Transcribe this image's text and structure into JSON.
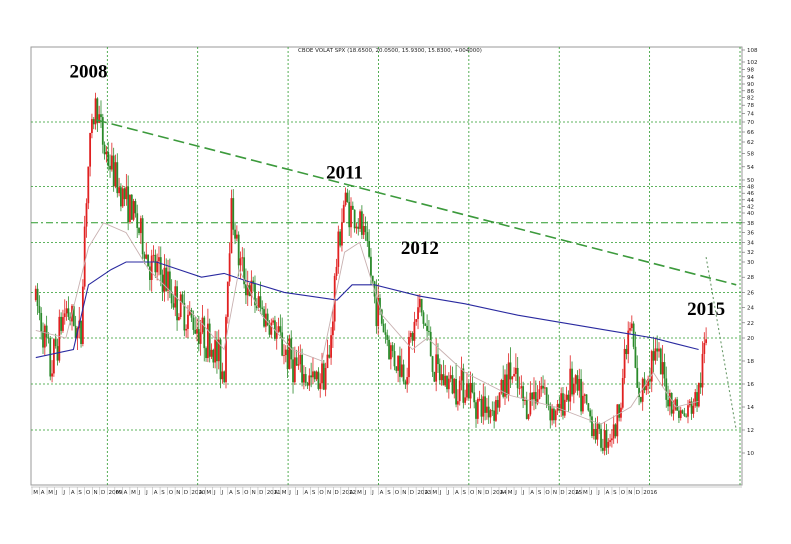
{
  "chart_data": {
    "type": "candlestick",
    "title": "CBOE VOLAT SPX (18.6500, 20.0500, 15.9300, 15.8300, +004000)",
    "x_range": [
      "2008-03",
      "2016-01"
    ],
    "ylim": [
      8,
      108
    ],
    "y_ticks": [
      10,
      12,
      14,
      16,
      18,
      20,
      22,
      24,
      26,
      28,
      30,
      32,
      34,
      36,
      38,
      40,
      42,
      44,
      46,
      48,
      50,
      54,
      58,
      62,
      66,
      70,
      74,
      78,
      82,
      86,
      90,
      94,
      98,
      102,
      108
    ],
    "x_ticks": [
      "M",
      "A",
      "M",
      "J",
      "J",
      "A",
      "S",
      "O",
      "N",
      "D",
      "2009",
      "M",
      "A",
      "M",
      "J",
      "J",
      "A",
      "S",
      "O",
      "N",
      "D",
      "2010",
      "A",
      "M",
      "J",
      "J",
      "A",
      "S",
      "O",
      "N",
      "D",
      "2011",
      "A",
      "M",
      "J",
      "J",
      "A",
      "S",
      "O",
      "N",
      "D",
      "2012",
      "A",
      "M",
      "J",
      "J",
      "A",
      "S",
      "O",
      "N",
      "D",
      "2013",
      "A",
      "M",
      "J",
      "J",
      "A",
      "S",
      "O",
      "N",
      "D",
      "2014",
      "A",
      "M",
      "J",
      "J",
      "A",
      "S",
      "O",
      "N",
      "D",
      "2015",
      "A",
      "M",
      "J",
      "J",
      "A",
      "S",
      "O",
      "N",
      "D",
      "2016"
    ],
    "annotations": [
      {
        "label": "2008",
        "date": "2008-10",
        "value": 89
      },
      {
        "label": "2011",
        "date": "2011-08",
        "value": 48
      },
      {
        "label": "2012",
        "date": "2012-06",
        "value": 30
      },
      {
        "label": "2015",
        "date": "2015-08",
        "value": 22
      }
    ],
    "trendlines": [
      {
        "name": "long-term",
        "style": "dashed",
        "from": {
          "date": "2008-11",
          "value": 71
        },
        "to": {
          "date": "2015-12",
          "value": 27
        }
      },
      {
        "name": "short-term",
        "style": "dotted",
        "from": {
          "date": "2015-08",
          "value": 31
        },
        "to": {
          "date": "2015-12",
          "value": 12
        }
      }
    ],
    "series": [
      {
        "type": "moving-average",
        "color": "#2a2aa0",
        "points": [
          [
            "2008-03",
            18.3
          ],
          [
            "2008-08",
            19
          ],
          [
            "2008-10",
            27
          ],
          [
            "2009-01",
            29
          ],
          [
            "2009-03",
            30
          ],
          [
            "2009-07",
            30
          ],
          [
            "2010-01",
            28
          ],
          [
            "2010-04",
            28.5
          ],
          [
            "2010-07",
            27.5
          ],
          [
            "2010-12",
            26
          ],
          [
            "2011-07",
            25
          ],
          [
            "2011-09",
            27
          ],
          [
            "2011-12",
            27
          ],
          [
            "2012-06",
            25.5
          ],
          [
            "2012-12",
            24.5
          ],
          [
            "2013-07",
            23
          ],
          [
            "2014-01",
            22
          ],
          [
            "2014-07",
            21
          ],
          [
            "2015-01",
            20
          ],
          [
            "2015-04",
            19.5
          ],
          [
            "2015-07",
            19
          ]
        ]
      },
      {
        "type": "moving-average",
        "color": "#c8b0b0",
        "points": [
          [
            "2008-03",
            21
          ],
          [
            "2008-07",
            20
          ],
          [
            "2008-10",
            33
          ],
          [
            "2008-12",
            38
          ],
          [
            "2009-03",
            36
          ],
          [
            "2009-06",
            29
          ],
          [
            "2009-10",
            25
          ],
          [
            "2010-01",
            22
          ],
          [
            "2010-04",
            19
          ],
          [
            "2010-06",
            29
          ],
          [
            "2010-09",
            23
          ],
          [
            "2011-01",
            19
          ],
          [
            "2011-05",
            18
          ],
          [
            "2011-08",
            32
          ],
          [
            "2011-10",
            34
          ],
          [
            "2012-01",
            23
          ],
          [
            "2012-05",
            19
          ],
          [
            "2012-07",
            20
          ],
          [
            "2012-12",
            17
          ],
          [
            "2013-06",
            15
          ],
          [
            "2013-12",
            14
          ],
          [
            "2014-06",
            12.5
          ],
          [
            "2014-10",
            14
          ],
          [
            "2015-01",
            17
          ],
          [
            "2015-04",
            14
          ],
          [
            "2015-07",
            14.5
          ]
        ]
      }
    ],
    "candles": {
      "up_color": "#2a8a2a",
      "down_color": "#e02020",
      "waypoints": [
        [
          "2008-03",
          25
        ],
        [
          "2008-05",
          17
        ],
        [
          "2008-07",
          24
        ],
        [
          "2008-09",
          20
        ],
        [
          "2008-10",
          55
        ],
        [
          "2008-11",
          80
        ],
        [
          "2008-12",
          60
        ],
        [
          "2009-02",
          48
        ],
        [
          "2009-04",
          40
        ],
        [
          "2009-06",
          30
        ],
        [
          "2009-08",
          28
        ],
        [
          "2009-10",
          24
        ],
        [
          "2009-12",
          22
        ],
        [
          "2010-02",
          20
        ],
        [
          "2010-04",
          17
        ],
        [
          "2010-05",
          42
        ],
        [
          "2010-06",
          30
        ],
        [
          "2010-08",
          25
        ],
        [
          "2010-10",
          22
        ],
        [
          "2010-12",
          19
        ],
        [
          "2011-02",
          17
        ],
        [
          "2011-04",
          16
        ],
        [
          "2011-06",
          18
        ],
        [
          "2011-08",
          44
        ],
        [
          "2011-09",
          40
        ],
        [
          "2011-10",
          38
        ],
        [
          "2011-11",
          32
        ],
        [
          "2011-12",
          25
        ],
        [
          "2012-02",
          19
        ],
        [
          "2012-04",
          17
        ],
        [
          "2012-06",
          24
        ],
        [
          "2012-08",
          17
        ],
        [
          "2012-10",
          16
        ],
        [
          "2012-12",
          16
        ],
        [
          "2013-02",
          14
        ],
        [
          "2013-04",
          14
        ],
        [
          "2013-06",
          17
        ],
        [
          "2013-08",
          14
        ],
        [
          "2013-10",
          16
        ],
        [
          "2013-12",
          13
        ],
        [
          "2014-02",
          16
        ],
        [
          "2014-04",
          14
        ],
        [
          "2014-06",
          11
        ],
        [
          "2014-08",
          12
        ],
        [
          "2014-10",
          22
        ],
        [
          "2014-11",
          14
        ],
        [
          "2015-01",
          19
        ],
        [
          "2015-03",
          15
        ],
        [
          "2015-05",
          13
        ],
        [
          "2015-07",
          15
        ],
        [
          "2015-08",
          20
        ]
      ]
    }
  }
}
